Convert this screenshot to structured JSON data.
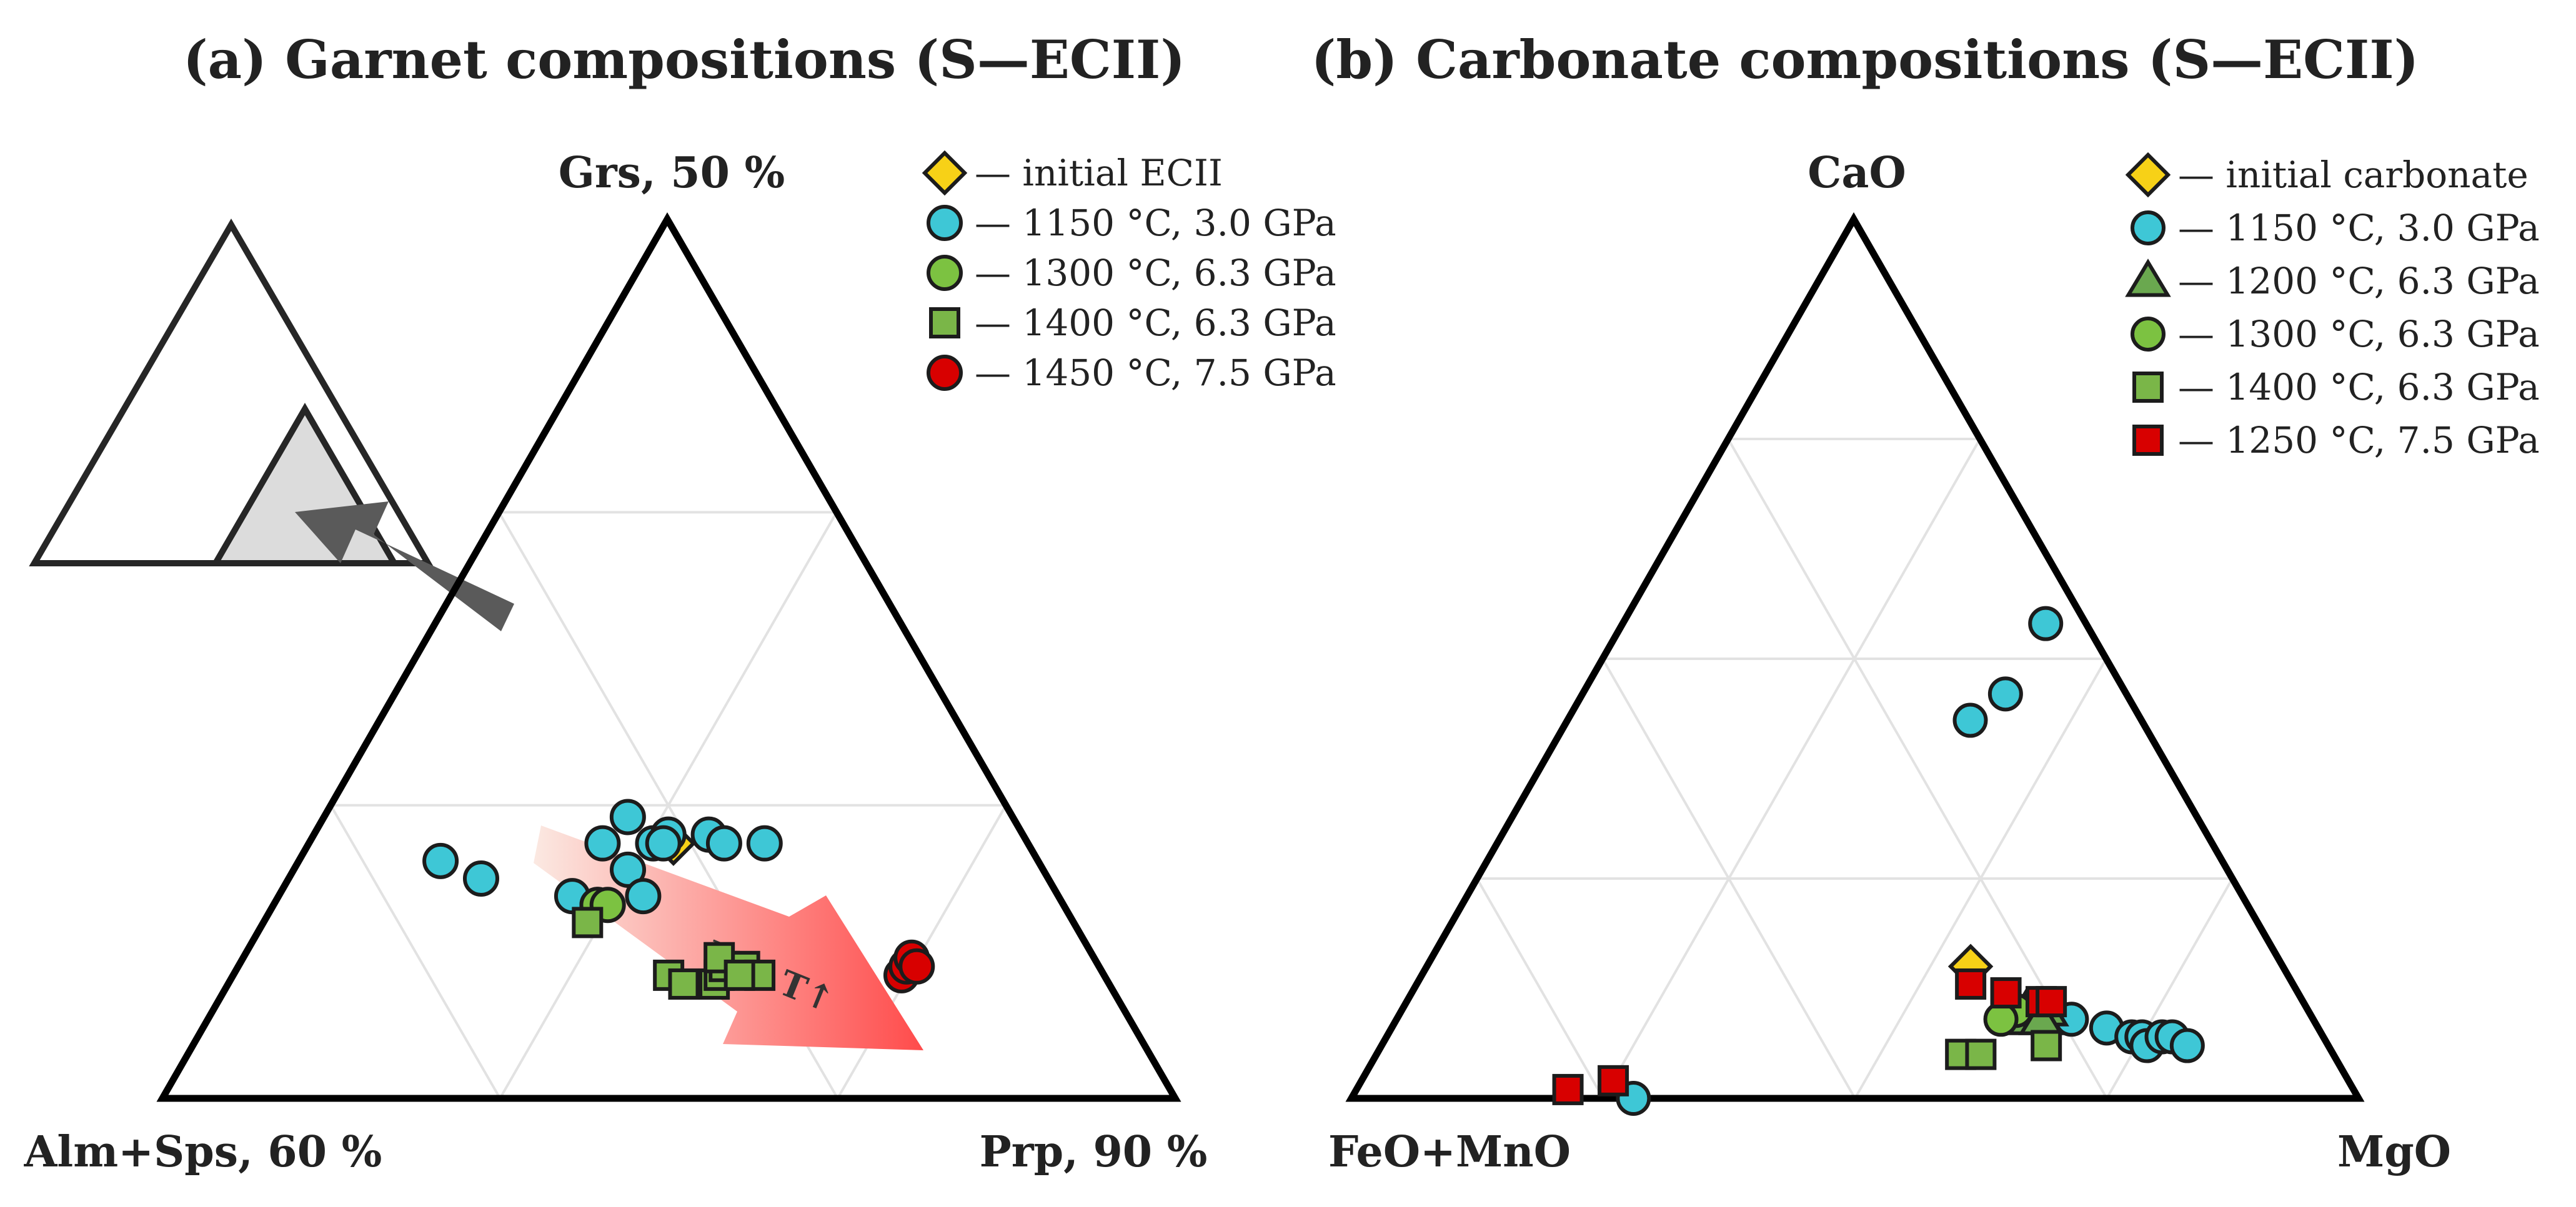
{
  "colors": {
    "yellow": "#f7d117",
    "cyan": "#3ec7d6",
    "green_light": "#7cc241",
    "green_square": "#7ab648",
    "green_triangle": "#6aa84f",
    "red": "#d80000",
    "arrow_start": "#fbe9e2",
    "arrow_end": "#ff4b4b",
    "inset_fill": "#dcdcdc",
    "inset_arrow": "#5a5a5a"
  },
  "chart_data": [
    {
      "type": "ternary-scatter",
      "title": "(a) Garnet compositions (S—ECII)",
      "vertices": {
        "top": "Grs, 50 %",
        "left": "Alm+Sps, 60 %",
        "right": "Prp, 90 %"
      },
      "components_order": [
        "top",
        "left",
        "right"
      ],
      "grid_steps": 3,
      "annotation": "P↑, T↑",
      "inset": {
        "icons": [
          "full-ternary-outline",
          "zoomed-subtriangle",
          "zoom-arrow"
        ]
      },
      "series": [
        {
          "name": "— initial ECII",
          "marker": "diamond",
          "color": "#f7d117",
          "points": [
            [
              0.29,
              0.35,
              0.36
            ]
          ]
        },
        {
          "name": "— 1150 °C, 3.0 GPa",
          "marker": "circle",
          "color": "#3ec7d6",
          "points": [
            [
              0.27,
              0.59,
              0.14
            ],
            [
              0.25,
              0.56,
              0.19
            ],
            [
              0.23,
              0.48,
              0.29
            ],
            [
              0.22,
              0.46,
              0.32
            ],
            [
              0.29,
              0.42,
              0.29
            ],
            [
              0.32,
              0.38,
              0.3
            ],
            [
              0.29,
              0.37,
              0.34
            ],
            [
              0.3,
              0.35,
              0.35
            ],
            [
              0.26,
              0.41,
              0.33
            ],
            [
              0.23,
              0.41,
              0.36
            ],
            [
              0.3,
              0.31,
              0.39
            ],
            [
              0.29,
              0.3,
              0.41
            ],
            [
              0.29,
              0.26,
              0.45
            ],
            [
              0.29,
              0.36,
              0.35
            ]
          ]
        },
        {
          "name": "— 1300 °C, 6.3 GPa",
          "marker": "circle",
          "color": "#7cc241",
          "points": [
            [
              0.22,
              0.46,
              0.32
            ],
            [
              0.22,
              0.45,
              0.33
            ]
          ]
        },
        {
          "name": "— 1400 °C, 6.3 GPa",
          "marker": "square",
          "color": "#7ab648",
          "points": [
            [
              0.2,
              0.48,
              0.32
            ],
            [
              0.14,
              0.43,
              0.43
            ],
            [
              0.13,
              0.42,
              0.45
            ],
            [
              0.13,
              0.39,
              0.48
            ],
            [
              0.14,
              0.38,
              0.48
            ],
            [
              0.15,
              0.37,
              0.48
            ],
            [
              0.15,
              0.35,
              0.5
            ],
            [
              0.16,
              0.37,
              0.47
            ],
            [
              0.14,
              0.34,
              0.52
            ],
            [
              0.14,
              0.36,
              0.5
            ]
          ]
        },
        {
          "name": "— 1450 °C, 7.5 GPa",
          "marker": "circle",
          "color": "#d80000",
          "points": [
            [
              0.14,
              0.2,
              0.66
            ],
            [
              0.15,
              0.19,
              0.66
            ],
            [
              0.16,
              0.18,
              0.66
            ],
            [
              0.15,
              0.18,
              0.67
            ]
          ]
        }
      ]
    },
    {
      "type": "ternary-scatter",
      "title": "(b) Carbonate compositions (S—ECII)",
      "vertices": {
        "top": "CaO",
        "left": "FeO+MnO",
        "right": "MgO"
      },
      "components_order": [
        "top",
        "left",
        "right"
      ],
      "grid_steps": 4,
      "series": [
        {
          "name": "— initial carbonate",
          "marker": "diamond",
          "color": "#f7d117",
          "points": [
            [
              0.15,
              0.31,
              0.54
            ]
          ]
        },
        {
          "name": "— 1150 °C, 3.0 GPa",
          "marker": "circle",
          "color": "#3ec7d6",
          "points": [
            [
              0.54,
              0.04,
              0.42
            ],
            [
              0.46,
              0.12,
              0.42
            ],
            [
              0.43,
              0.17,
              0.4
            ],
            [
              0.1,
              0.27,
              0.63
            ],
            [
              0.09,
              0.24,
              0.67
            ],
            [
              0.08,
              0.21,
              0.71
            ],
            [
              0.07,
              0.19,
              0.74
            ],
            [
              0.07,
              0.18,
              0.75
            ],
            [
              0.06,
              0.18,
              0.76
            ],
            [
              0.07,
              0.16,
              0.77
            ],
            [
              0.07,
              0.15,
              0.78
            ],
            [
              0.06,
              0.14,
              0.8
            ],
            [
              0.0,
              0.72,
              0.28
            ]
          ]
        },
        {
          "name": "— 1200 °C, 6.3 GPa",
          "marker": "triangle",
          "color": "#6aa84f",
          "points": [
            [
              0.09,
              0.29,
              0.62
            ],
            [
              0.1,
              0.28,
              0.62
            ],
            [
              0.1,
              0.26,
              0.64
            ],
            [
              0.09,
              0.27,
              0.64
            ]
          ]
        },
        {
          "name": "— 1300 °C, 6.3 GPa",
          "marker": "circle",
          "color": "#7cc241",
          "points": [
            [
              0.1,
              0.29,
              0.61
            ],
            [
              0.09,
              0.31,
              0.6
            ]
          ]
        },
        {
          "name": "— 1400 °C, 6.3 GPa",
          "marker": "square",
          "color": "#7ab648",
          "points": [
            [
              0.05,
              0.37,
              0.58
            ],
            [
              0.05,
              0.35,
              0.6
            ],
            [
              0.06,
              0.28,
              0.66
            ]
          ]
        },
        {
          "name": "— 1250 °C, 7.5 GPa",
          "marker": "square",
          "color": "#d80000",
          "points": [
            [
              0.13,
              0.32,
              0.55
            ],
            [
              0.12,
              0.29,
              0.59
            ],
            [
              0.11,
              0.26,
              0.63
            ],
            [
              0.11,
              0.25,
              0.64
            ],
            [
              0.01,
              0.78,
              0.21
            ],
            [
              0.02,
              0.73,
              0.25
            ]
          ]
        }
      ]
    }
  ]
}
